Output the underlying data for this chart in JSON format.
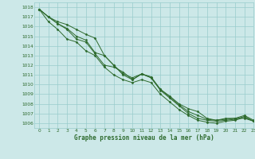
{
  "xlabel": "Graphe pression niveau de la mer (hPa)",
  "ylim": [
    1005.5,
    1018.5
  ],
  "xlim": [
    -0.5,
    23
  ],
  "yticks": [
    1006,
    1007,
    1008,
    1009,
    1010,
    1011,
    1012,
    1013,
    1014,
    1015,
    1016,
    1017,
    1018
  ],
  "xticks": [
    0,
    1,
    2,
    3,
    4,
    5,
    6,
    7,
    8,
    9,
    10,
    11,
    12,
    13,
    14,
    15,
    16,
    17,
    18,
    19,
    20,
    21,
    22,
    23
  ],
  "bg_color": "#cce8e8",
  "grid_color": "#99cccc",
  "line_color": "#2d6a2d",
  "label_color": "#2d6a2d",
  "lines": [
    [
      1017.8,
      1017.0,
      1016.5,
      1016.2,
      1015.7,
      1015.2,
      1014.8,
      1013.0,
      1012.0,
      1011.0,
      1010.5,
      1011.1,
      1010.8,
      1009.5,
      1008.8,
      1008.0,
      1007.5,
      1007.2,
      1006.5,
      1006.3,
      1006.5,
      1006.5,
      1006.5,
      1006.2
    ],
    [
      1017.8,
      1017.0,
      1016.3,
      1015.8,
      1015.0,
      1014.6,
      1013.3,
      1013.0,
      1012.0,
      1011.1,
      1010.7,
      1011.1,
      1010.7,
      1009.5,
      1008.7,
      1007.9,
      1007.2,
      1006.8,
      1006.4,
      1006.3,
      1006.4,
      1006.5,
      1006.8,
      1006.3
    ],
    [
      1017.8,
      1017.0,
      1016.3,
      1015.7,
      1014.7,
      1014.4,
      1013.2,
      1012.0,
      1011.8,
      1011.3,
      1010.5,
      1011.1,
      1010.7,
      1009.4,
      1008.6,
      1007.8,
      1007.0,
      1006.5,
      1006.3,
      1006.2,
      1006.3,
      1006.4,
      1006.7,
      1006.2
    ],
    [
      1017.8,
      1016.5,
      1015.7,
      1014.7,
      1014.4,
      1013.5,
      1013.0,
      1011.8,
      1011.0,
      1010.5,
      1010.2,
      1010.5,
      1010.2,
      1009.0,
      1008.2,
      1007.4,
      1006.8,
      1006.3,
      1006.1,
      1006.0,
      1006.2,
      1006.3,
      1006.6,
      1006.2
    ]
  ]
}
